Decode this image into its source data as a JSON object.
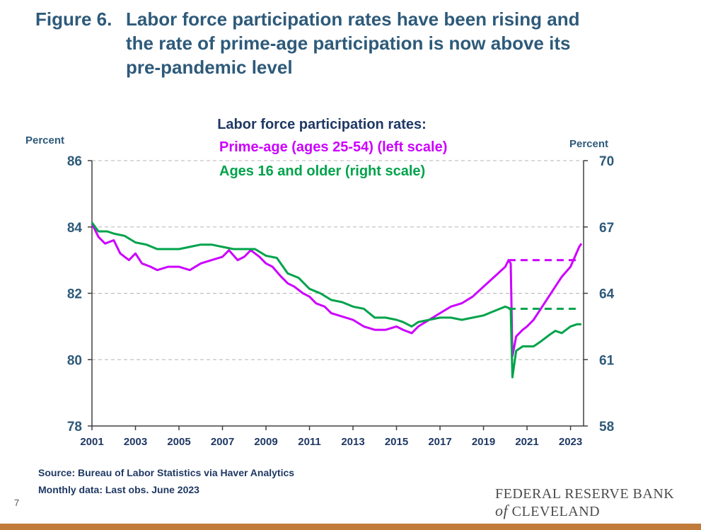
{
  "title": {
    "figure": "Figure 6.",
    "line1": "Labor force participation rates have been rising and",
    "line2": "the rate of prime-age participation is now above its",
    "line3": "pre-pandemic level"
  },
  "chart_data": {
    "type": "line",
    "heading": "Labor force participation rates:",
    "left_axis_label": "Percent",
    "right_axis_label": "Percent",
    "left_ylim": [
      78,
      86
    ],
    "right_ylim": [
      58,
      70
    ],
    "left_ticks": [
      "86",
      "84",
      "82",
      "80",
      "78"
    ],
    "right_ticks": [
      "70",
      "67",
      "64",
      "61",
      "58"
    ],
    "x_ticks": [
      "2001",
      "2003",
      "2005",
      "2007",
      "2009",
      "2011",
      "2013",
      "2015",
      "2017",
      "2019",
      "2021",
      "2023"
    ],
    "xlim": [
      2001.0,
      2023.6
    ],
    "grid": "horizontal-dashed",
    "legend": "top-center",
    "series": [
      {
        "name": "Prime-age (ages 25-54) (left scale)",
        "axis": "left",
        "color": "#cc00ff",
        "points": [
          [
            2001.0,
            84.1
          ],
          [
            2001.3,
            83.7
          ],
          [
            2001.6,
            83.5
          ],
          [
            2002.0,
            83.6
          ],
          [
            2002.3,
            83.2
          ],
          [
            2002.7,
            83.0
          ],
          [
            2003.0,
            83.2
          ],
          [
            2003.3,
            82.9
          ],
          [
            2003.7,
            82.8
          ],
          [
            2004.0,
            82.7
          ],
          [
            2004.5,
            82.8
          ],
          [
            2005.0,
            82.8
          ],
          [
            2005.5,
            82.7
          ],
          [
            2006.0,
            82.9
          ],
          [
            2006.5,
            83.0
          ],
          [
            2007.0,
            83.1
          ],
          [
            2007.3,
            83.3
          ],
          [
            2007.7,
            83.0
          ],
          [
            2008.0,
            83.1
          ],
          [
            2008.3,
            83.3
          ],
          [
            2008.7,
            83.1
          ],
          [
            2009.0,
            82.9
          ],
          [
            2009.3,
            82.8
          ],
          [
            2009.7,
            82.5
          ],
          [
            2010.0,
            82.3
          ],
          [
            2010.3,
            82.2
          ],
          [
            2010.7,
            82.0
          ],
          [
            2011.0,
            81.9
          ],
          [
            2011.3,
            81.7
          ],
          [
            2011.7,
            81.6
          ],
          [
            2012.0,
            81.4
          ],
          [
            2012.5,
            81.3
          ],
          [
            2013.0,
            81.2
          ],
          [
            2013.5,
            81.0
          ],
          [
            2014.0,
            80.9
          ],
          [
            2014.5,
            80.9
          ],
          [
            2015.0,
            81.0
          ],
          [
            2015.3,
            80.9
          ],
          [
            2015.7,
            80.8
          ],
          [
            2016.0,
            81.0
          ],
          [
            2016.5,
            81.2
          ],
          [
            2017.0,
            81.4
          ],
          [
            2017.5,
            81.6
          ],
          [
            2018.0,
            81.7
          ],
          [
            2018.5,
            81.9
          ],
          [
            2019.0,
            82.2
          ],
          [
            2019.5,
            82.5
          ],
          [
            2020.0,
            82.8
          ],
          [
            2020.15,
            83.0
          ],
          [
            2020.25,
            82.9
          ],
          [
            2020.33,
            80.1
          ],
          [
            2020.5,
            80.7
          ],
          [
            2020.8,
            80.9
          ],
          [
            2021.0,
            81.0
          ],
          [
            2021.3,
            81.2
          ],
          [
            2021.6,
            81.5
          ],
          [
            2022.0,
            81.9
          ],
          [
            2022.3,
            82.2
          ],
          [
            2022.6,
            82.5
          ],
          [
            2023.0,
            82.8
          ],
          [
            2023.2,
            83.1
          ],
          [
            2023.4,
            83.4
          ],
          [
            2023.5,
            83.5
          ]
        ],
        "reference_level": 83.0,
        "reference_range": [
          2020.15,
          2023.4
        ]
      },
      {
        "name": "Ages 16 and older (right scale)",
        "axis": "right",
        "color": "#00a34b",
        "points": [
          [
            2001.0,
            67.2
          ],
          [
            2001.3,
            66.8
          ],
          [
            2001.7,
            66.8
          ],
          [
            2002.0,
            66.7
          ],
          [
            2002.5,
            66.6
          ],
          [
            2003.0,
            66.3
          ],
          [
            2003.5,
            66.2
          ],
          [
            2004.0,
            66.0
          ],
          [
            2004.5,
            66.0
          ],
          [
            2005.0,
            66.0
          ],
          [
            2005.5,
            66.1
          ],
          [
            2006.0,
            66.2
          ],
          [
            2006.5,
            66.2
          ],
          [
            2007.0,
            66.1
          ],
          [
            2007.5,
            66.0
          ],
          [
            2008.0,
            66.0
          ],
          [
            2008.5,
            66.0
          ],
          [
            2009.0,
            65.7
          ],
          [
            2009.5,
            65.6
          ],
          [
            2010.0,
            64.9
          ],
          [
            2010.5,
            64.7
          ],
          [
            2011.0,
            64.2
          ],
          [
            2011.5,
            64.0
          ],
          [
            2012.0,
            63.7
          ],
          [
            2012.5,
            63.6
          ],
          [
            2013.0,
            63.4
          ],
          [
            2013.5,
            63.3
          ],
          [
            2014.0,
            62.9
          ],
          [
            2014.5,
            62.9
          ],
          [
            2015.0,
            62.8
          ],
          [
            2015.3,
            62.7
          ],
          [
            2015.7,
            62.5
          ],
          [
            2016.0,
            62.7
          ],
          [
            2016.5,
            62.8
          ],
          [
            2017.0,
            62.9
          ],
          [
            2017.5,
            62.9
          ],
          [
            2018.0,
            62.8
          ],
          [
            2018.5,
            62.9
          ],
          [
            2019.0,
            63.0
          ],
          [
            2019.5,
            63.2
          ],
          [
            2020.0,
            63.4
          ],
          [
            2020.25,
            63.3
          ],
          [
            2020.33,
            60.2
          ],
          [
            2020.5,
            61.4
          ],
          [
            2020.8,
            61.6
          ],
          [
            2021.0,
            61.6
          ],
          [
            2021.3,
            61.6
          ],
          [
            2021.6,
            61.8
          ],
          [
            2022.0,
            62.1
          ],
          [
            2022.3,
            62.3
          ],
          [
            2022.6,
            62.2
          ],
          [
            2023.0,
            62.5
          ],
          [
            2023.3,
            62.6
          ],
          [
            2023.5,
            62.6
          ]
        ],
        "reference_level": 63.3,
        "reference_range": [
          2020.15,
          2023.4
        ]
      }
    ]
  },
  "footer": {
    "source": "Source: Bureau of Labor Statistics via Haver Analytics",
    "note": "Monthly data: Last obs. June 2023"
  },
  "slide_number": "7",
  "bank": {
    "line1": "FEDERAL RESERVE BANK",
    "of": "of",
    "city": "CLEVELAND"
  }
}
